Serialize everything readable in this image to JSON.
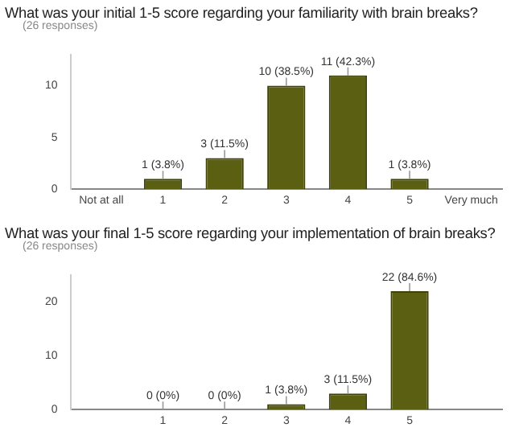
{
  "chart_data": [
    {
      "type": "bar",
      "title": "What was your initial 1-5 score regarding your familiarity with brain breaks?",
      "subtitle": "(26 responses)",
      "categories": [
        "Not at all",
        "1",
        "2",
        "3",
        "4",
        "5",
        "Very much"
      ],
      "values": [
        null,
        1,
        3,
        10,
        11,
        1,
        null
      ],
      "value_labels": [
        null,
        "1 (3.8%)",
        "3 (11.5%)",
        "10 (38.5%)",
        "11 (42.3%)",
        "1 (3.8%)",
        null
      ],
      "color": "#5b5f12",
      "ylim": [
        0,
        13
      ],
      "yticks": [
        0,
        5,
        10
      ],
      "grid": false,
      "legend": false
    },
    {
      "type": "bar",
      "title": "What was your final 1-5 score regarding your implementation of brain breaks?",
      "subtitle": "(26 responses)",
      "categories": [
        null,
        "1",
        "2",
        "3",
        "4",
        "5",
        null
      ],
      "values": [
        null,
        0,
        0,
        1,
        3,
        22,
        null
      ],
      "value_labels": [
        null,
        "0 (0%)",
        "0 (0%)",
        "1 (3.8%)",
        "3 (11.5%)",
        "22 (84.6%)",
        null
      ],
      "color": "#5b5f12",
      "ylim": [
        0,
        25
      ],
      "yticks": [
        0,
        10,
        20
      ],
      "grid": false,
      "legend": false
    }
  ]
}
